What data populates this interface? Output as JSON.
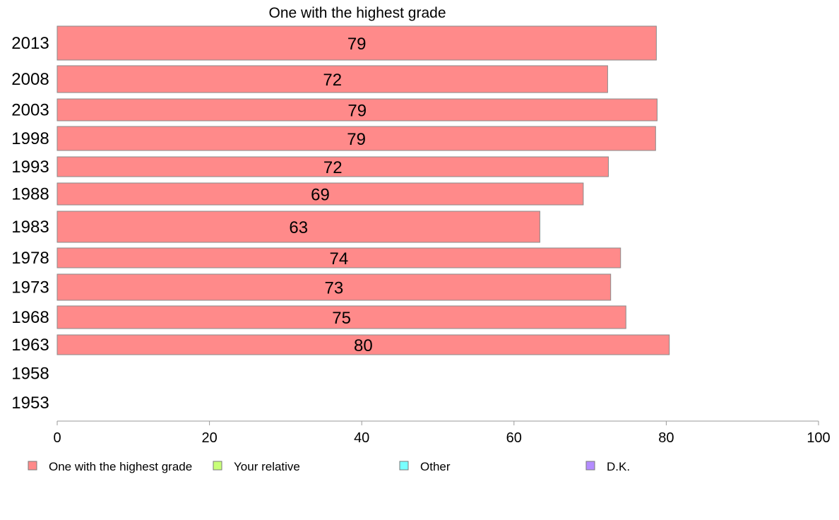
{
  "chart_data": {
    "type": "bar",
    "orientation": "horizontal",
    "title": "One with the highest grade",
    "xlabel": "",
    "ylabel": "",
    "xlim": [
      0,
      100
    ],
    "xticks": [
      0,
      20,
      40,
      60,
      80,
      100
    ],
    "grid": false,
    "legend_position": "bottom",
    "categories": [
      "2013",
      "2008",
      "2003",
      "1998",
      "1993",
      "1988",
      "1983",
      "1978",
      "1973",
      "1968",
      "1963",
      "1958",
      "1953"
    ],
    "series": [
      {
        "name": "One with the highest grade",
        "color": "#ff8a8a",
        "values": [
          79,
          72,
          79,
          79,
          72,
          69,
          63,
          74,
          73,
          75,
          80,
          null,
          null
        ],
        "bar_ends": [
          78.7,
          72.3,
          78.8,
          78.6,
          72.4,
          69.1,
          63.4,
          74.0,
          72.7,
          74.7,
          80.4,
          null,
          null
        ]
      }
    ],
    "legend": [
      {
        "name": "One with the highest grade",
        "color": "#ff8a8a"
      },
      {
        "name": "Your relative",
        "color": "#c8ff78"
      },
      {
        "name": "Other",
        "color": "#78ffff"
      },
      {
        "name": "D.K.",
        "color": "#b48cff"
      }
    ]
  }
}
